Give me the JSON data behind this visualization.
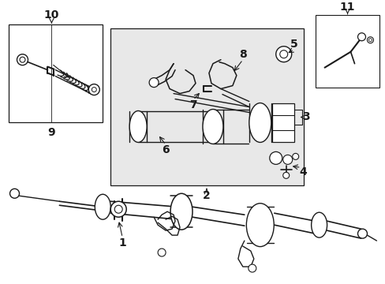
{
  "bg_color": "#ffffff",
  "line_color": "#1a1a1a",
  "box_bg": "#e8e8e8",
  "lw_main": 1.2,
  "lw_thin": 0.8,
  "fontsize": 9
}
